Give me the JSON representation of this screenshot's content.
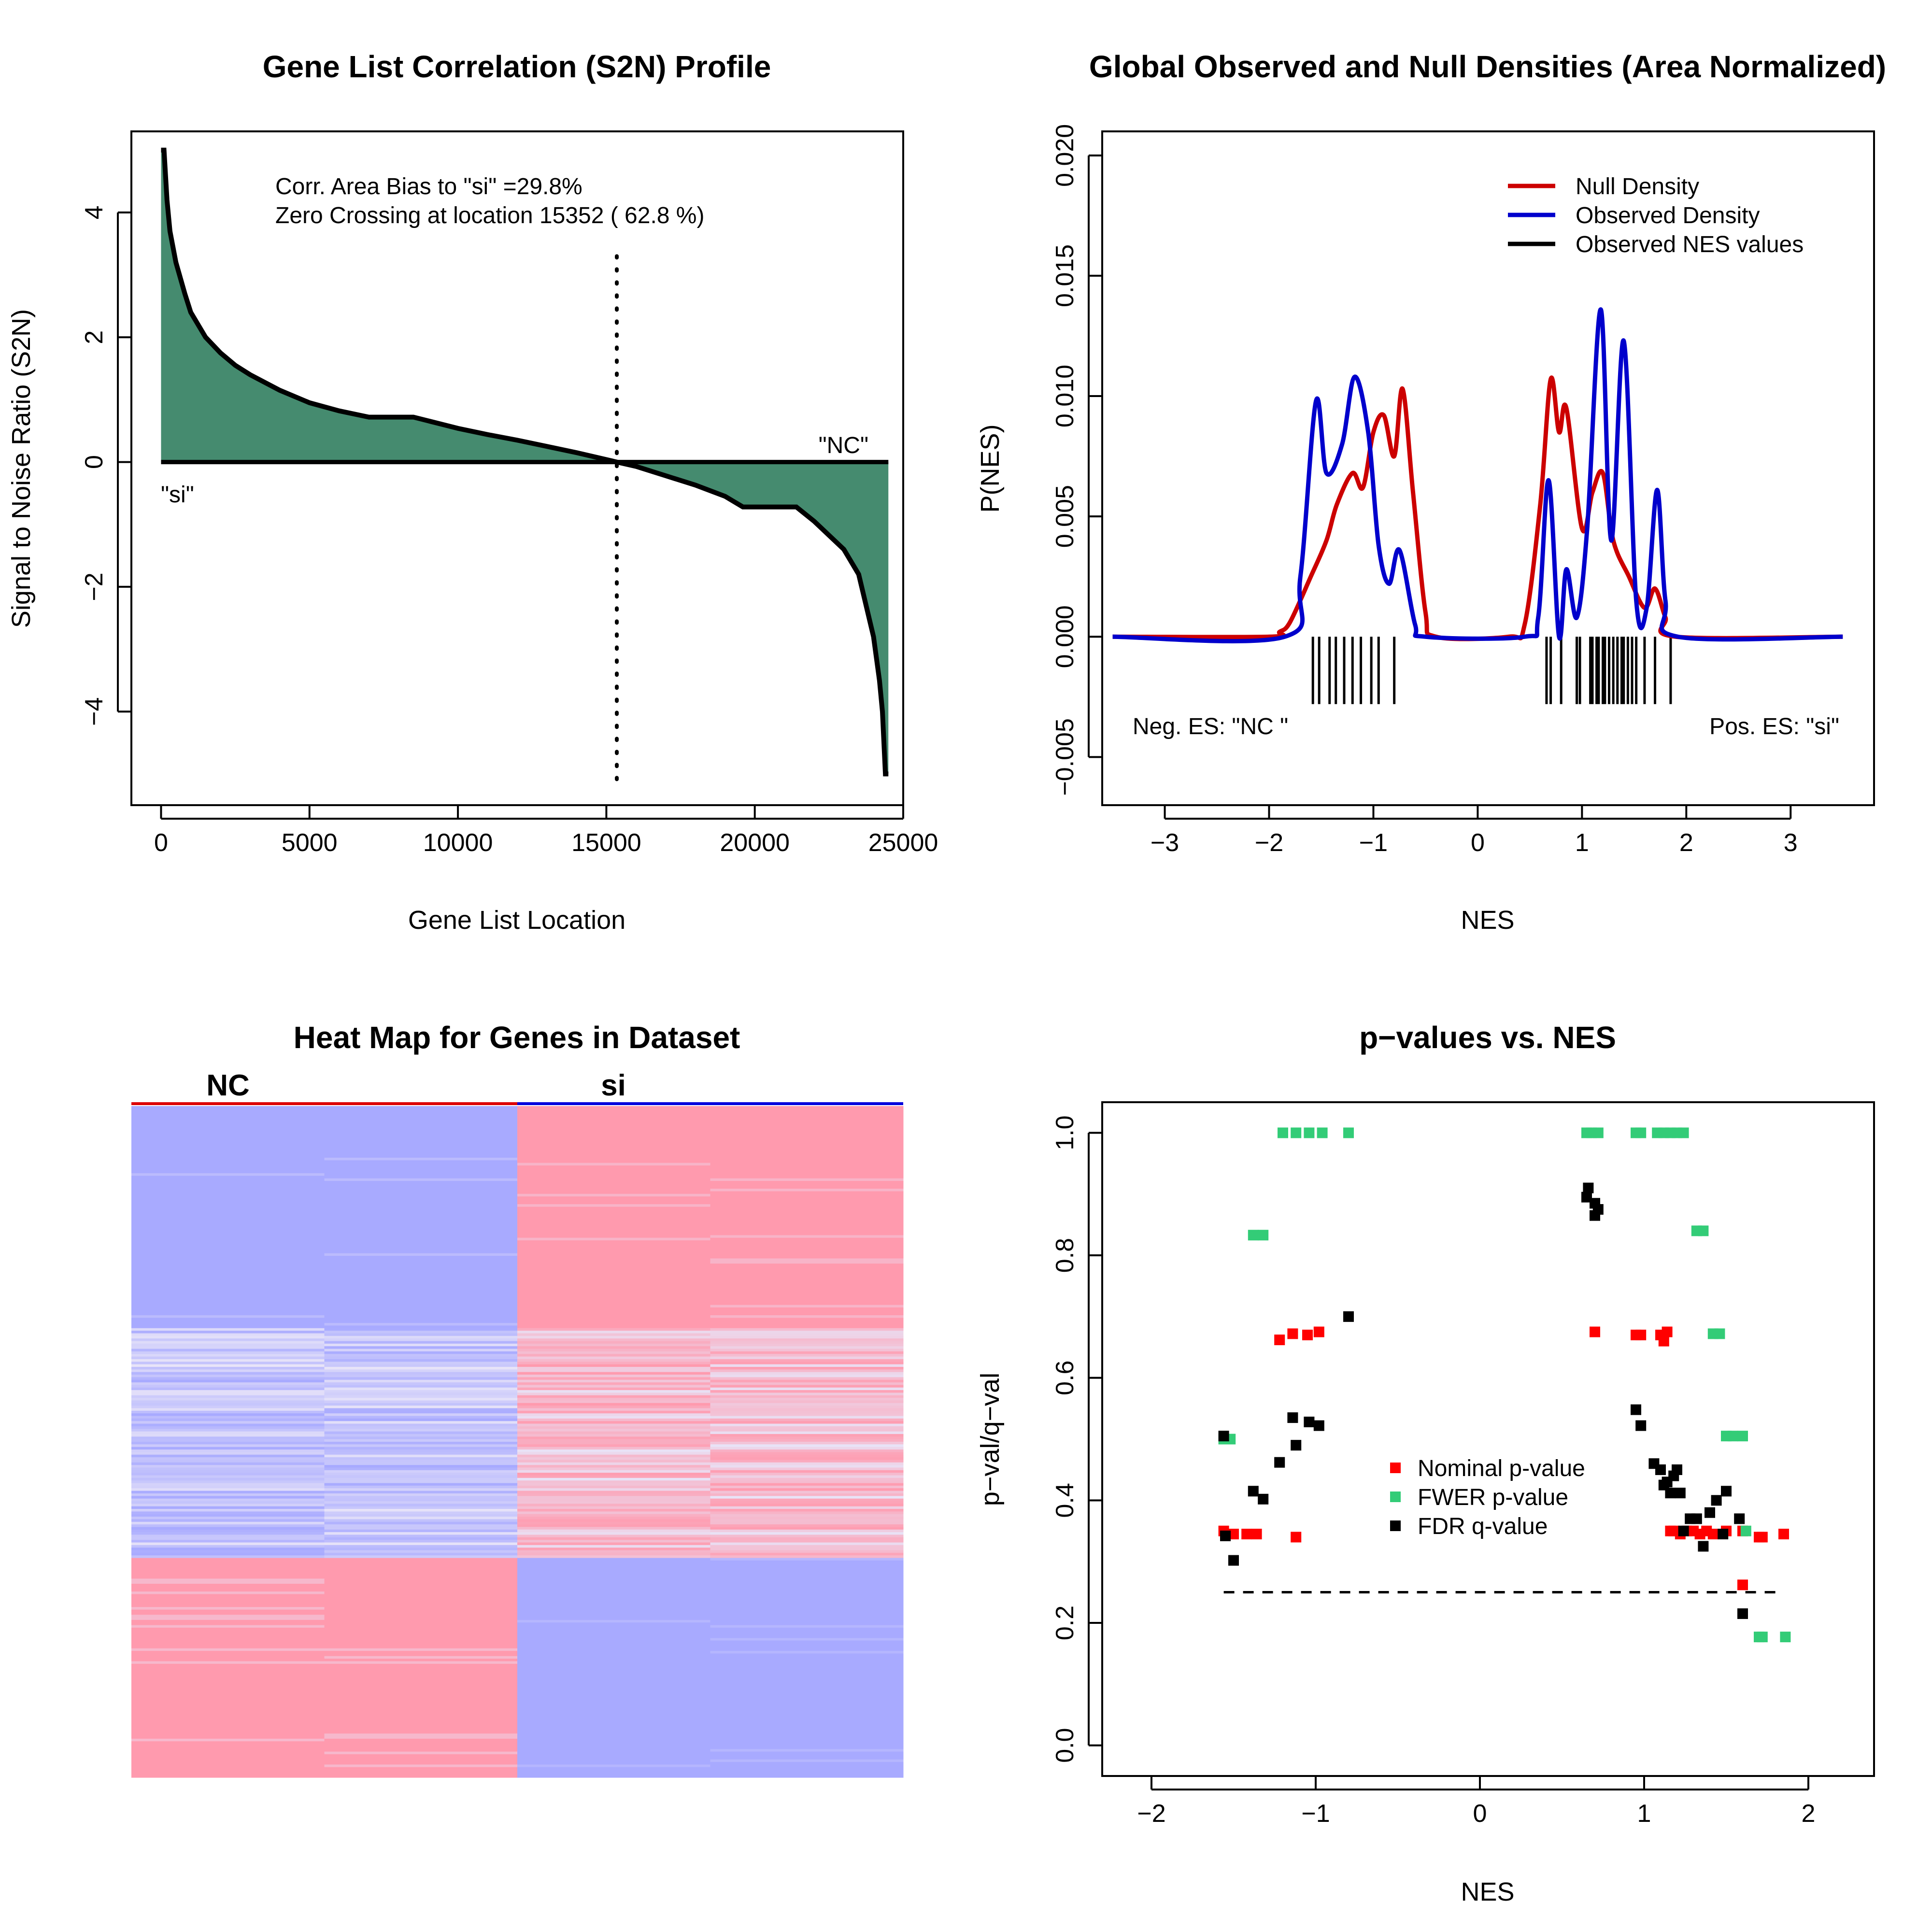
{
  "chart_data": [
    {
      "type": "area",
      "title": "Gene List Correlation (S2N) Profile",
      "xlabel": "Gene List Location",
      "ylabel": "Signal to Noise Ratio (S2N)",
      "xlim": [
        -1000,
        25000
      ],
      "ylim": [
        -5.5,
        5.3
      ],
      "xticks": [
        "0",
        "5000",
        "10000",
        "15000",
        "20000",
        "25000"
      ],
      "yticks": [
        "−4",
        "−2",
        "0",
        "2",
        "4"
      ],
      "x": [
        0,
        100,
        200,
        300,
        500,
        800,
        1000,
        1500,
        2000,
        2500,
        3000,
        4000,
        5000,
        6000,
        7000,
        8500,
        9000,
        10000,
        11000,
        12000,
        13000,
        14000,
        15352,
        16000,
        17000,
        18000,
        19000,
        19600,
        21400,
        22000,
        23000,
        23500,
        24000,
        24200,
        24300,
        24400,
        24500
      ],
      "values": [
        5.0,
        5.0,
        4.2,
        3.7,
        3.2,
        2.7,
        2.4,
        2.0,
        1.75,
        1.55,
        1.4,
        1.15,
        0.95,
        0.82,
        0.72,
        0.72,
        0.66,
        0.54,
        0.44,
        0.35,
        0.25,
        0.15,
        0.0,
        -0.07,
        -0.22,
        -0.37,
        -0.55,
        -0.72,
        -0.72,
        -0.95,
        -1.4,
        -1.8,
        -2.8,
        -3.5,
        -4.0,
        -5.0,
        -5.0
      ],
      "zero_crossing": 15352,
      "annotations": [
        "Corr. Area Bias to \"si\" =29.8%",
        "Zero Crossing at location  15352  ( 62.8  %)",
        "\"si\"",
        "\"NC\""
      ],
      "colors": {
        "fill": "#458b6f",
        "line": "#000000"
      }
    },
    {
      "type": "line",
      "title": "Global Observed and Null Densities (Area Normalized)",
      "xlabel": "NES",
      "ylabel": "P(NES)",
      "xlim": [
        -3.6,
        3.8
      ],
      "ylim": [
        -0.007,
        0.021
      ],
      "xticks": [
        "−3",
        "−2",
        "−1",
        "0",
        "1",
        "2",
        "3"
      ],
      "yticks": [
        "−0.005",
        "0.000",
        "0.005",
        "0.010",
        "0.015",
        "0.020"
      ],
      "series": [
        {
          "name": "Null Density",
          "color": "#cc0000",
          "x": [
            -3.5,
            -2.0,
            -1.9,
            -1.8,
            -1.6,
            -1.45,
            -1.35,
            -1.2,
            -1.1,
            -1.0,
            -0.9,
            -0.8,
            -0.72,
            -0.62,
            -0.5,
            -0.4,
            0.3,
            0.45,
            0.6,
            0.7,
            0.78,
            0.85,
            1.0,
            1.1,
            1.2,
            1.3,
            1.45,
            1.6,
            1.7,
            1.8,
            1.9,
            3.5
          ],
          "values": [
            0.0,
            0.0,
            0.0002,
            0.0006,
            0.0025,
            0.004,
            0.0055,
            0.0068,
            0.0062,
            0.0085,
            0.0092,
            0.0075,
            0.0103,
            0.006,
            0.001,
            0.0,
            0.0,
            0.0005,
            0.0055,
            0.0107,
            0.0085,
            0.0095,
            0.0045,
            0.006,
            0.0068,
            0.004,
            0.0025,
            0.0012,
            0.002,
            0.0008,
            0.0,
            0.0
          ]
        },
        {
          "name": "Observed Density",
          "color": "#0000cc",
          "x": [
            -3.5,
            -1.85,
            -1.7,
            -1.55,
            -1.45,
            -1.3,
            -1.18,
            -1.05,
            -0.95,
            -0.85,
            -0.75,
            -0.6,
            -0.5,
            0.45,
            0.58,
            0.68,
            0.78,
            0.85,
            0.95,
            1.05,
            1.18,
            1.28,
            1.4,
            1.52,
            1.62,
            1.72,
            1.8,
            1.92,
            3.5
          ],
          "values": [
            0.0,
            0.0,
            0.0025,
            0.0098,
            0.0068,
            0.008,
            0.0108,
            0.0085,
            0.0038,
            0.0022,
            0.0036,
            0.0005,
            0.0,
            0.0,
            0.0008,
            0.0065,
            0.0,
            0.0028,
            0.0008,
            0.0045,
            0.0136,
            0.004,
            0.0123,
            0.0015,
            0.0012,
            0.0061,
            0.0015,
            0.0,
            0.0
          ]
        },
        {
          "name": "Observed NES values",
          "color": "#000000",
          "x": [
            -1.58,
            -1.52,
            -1.42,
            -1.36,
            -1.28,
            -1.2,
            -1.12,
            -1.02,
            -0.95,
            -0.8,
            0.66,
            0.7,
            0.8,
            0.95,
            0.98,
            1.08,
            1.1,
            1.14,
            1.16,
            1.2,
            1.22,
            1.26,
            1.3,
            1.34,
            1.38,
            1.4,
            1.44,
            1.48,
            1.52,
            1.6,
            1.7,
            1.85
          ]
        }
      ],
      "annotations": [
        "Neg. ES: \"NC \"",
        "Pos. ES: \"si\""
      ],
      "legend": "top-right"
    },
    {
      "type": "heatmap",
      "title": "Heat Map for Genes in Dataset",
      "groups": [
        "NC",
        "si"
      ],
      "colors": {
        "high": "#ff9aae",
        "low": "#a8aaff",
        "mid": "#e8e4f8",
        "group_nc": "#dd0000",
        "group_si": "#0000dd"
      }
    },
    {
      "type": "scatter",
      "title": "p−values vs. NES",
      "xlabel": "NES",
      "ylabel": "p−val/q−val",
      "xlim": [
        -2.3,
        2.4
      ],
      "ylim": [
        -0.05,
        1.05
      ],
      "xticks": [
        "−2",
        "−1",
        "0",
        "1",
        "2"
      ],
      "yticks": [
        "0.0",
        "0.2",
        "0.4",
        "0.6",
        "0.8",
        "1.0"
      ],
      "threshold": 0.25,
      "threshold_range": [
        -1.56,
        1.85
      ],
      "series": [
        {
          "name": "Nominal p-value",
          "color": "#ff0000",
          "x": [
            -1.56,
            -1.5,
            -1.42,
            -1.36,
            -1.22,
            -1.14,
            -1.12,
            -1.05,
            -0.98,
            0.7,
            0.95,
            0.98,
            1.1,
            1.12,
            1.16,
            1.14,
            1.18,
            1.22,
            1.26,
            1.3,
            1.34,
            1.38,
            1.42,
            1.5,
            1.6,
            1.6,
            1.7,
            1.72,
            1.85
          ],
          "values": [
            0.35,
            0.345,
            0.345,
            0.345,
            0.662,
            0.672,
            0.34,
            0.67,
            0.675,
            0.675,
            0.67,
            0.67,
            0.67,
            0.66,
            0.35,
            0.675,
            0.35,
            0.345,
            0.35,
            0.35,
            0.345,
            0.35,
            0.345,
            0.35,
            0.35,
            0.262,
            0.34,
            0.34,
            0.345
          ]
        },
        {
          "name": "FWER p-value",
          "color": "#33cc77",
          "x": [
            -1.56,
            -1.52,
            -1.38,
            -1.32,
            -1.2,
            -1.12,
            -1.04,
            -0.96,
            -0.8,
            0.65,
            0.68,
            0.72,
            0.95,
            0.98,
            1.08,
            1.12,
            1.16,
            1.2,
            1.24,
            1.32,
            1.36,
            1.42,
            1.46,
            1.5,
            1.54,
            1.6,
            1.62,
            1.7,
            1.72,
            1.86
          ],
          "values": [
            0.5,
            0.5,
            0.833,
            0.833,
            1.0,
            1.0,
            1.0,
            1.0,
            1.0,
            1.0,
            1.0,
            1.0,
            1.0,
            1.0,
            1.0,
            1.0,
            1.0,
            1.0,
            1.0,
            0.84,
            0.84,
            0.672,
            0.672,
            0.505,
            0.505,
            0.505,
            0.35,
            0.177,
            0.177,
            0.177
          ]
        },
        {
          "name": "FDR q-value",
          "color": "#000000",
          "x": [
            -1.56,
            -1.55,
            -1.5,
            -1.38,
            -1.32,
            -1.22,
            -1.14,
            -1.12,
            -1.04,
            -0.98,
            -0.8,
            0.65,
            0.66,
            0.7,
            0.7,
            0.72,
            0.95,
            0.98,
            1.06,
            1.1,
            1.12,
            1.14,
            1.16,
            1.18,
            1.2,
            1.22,
            1.24,
            1.28,
            1.32,
            1.36,
            1.4,
            1.44,
            1.48,
            1.5,
            1.58,
            1.6
          ],
          "values": [
            0.505,
            0.342,
            0.302,
            0.415,
            0.402,
            0.462,
            0.535,
            0.49,
            0.528,
            0.522,
            0.7,
            0.895,
            0.91,
            0.885,
            0.865,
            0.875,
            0.548,
            0.522,
            0.46,
            0.45,
            0.425,
            0.43,
            0.412,
            0.44,
            0.45,
            0.412,
            0.35,
            0.37,
            0.37,
            0.325,
            0.38,
            0.4,
            0.345,
            0.415,
            0.37,
            0.215
          ]
        }
      ],
      "legend": "center"
    }
  ]
}
